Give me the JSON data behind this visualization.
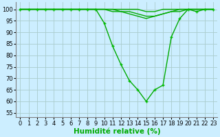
{
  "title": "",
  "xlabel": "Humidité relative (%)",
  "ylabel": "",
  "bg_color": "#cceeff",
  "grid_color": "#aacccc",
  "line_color": "#00aa00",
  "marker_color": "#00bb00",
  "xlim": [
    -0.5,
    23.5
  ],
  "ylim": [
    53,
    103
  ],
  "yticks": [
    55,
    60,
    65,
    70,
    75,
    80,
    85,
    90,
    95,
    100
  ],
  "xticks": [
    0,
    1,
    2,
    3,
    4,
    5,
    6,
    7,
    8,
    9,
    10,
    11,
    12,
    13,
    14,
    15,
    16,
    17,
    18,
    19,
    20,
    21,
    22,
    23
  ],
  "series": [
    [
      100,
      100,
      100,
      100,
      100,
      100,
      100,
      100,
      100,
      100,
      94,
      84,
      76,
      69,
      65,
      60,
      65,
      67,
      88,
      96,
      100,
      99,
      100,
      100
    ],
    [
      100,
      100,
      100,
      100,
      100,
      100,
      100,
      100,
      100,
      100,
      100,
      100,
      100,
      100,
      100,
      99,
      99,
      100,
      100,
      100,
      100,
      100,
      100,
      100
    ],
    [
      100,
      100,
      100,
      100,
      100,
      100,
      100,
      100,
      100,
      100,
      100,
      99,
      99,
      99,
      98,
      97,
      97,
      98,
      99,
      99,
      100,
      100,
      100,
      100
    ],
    [
      100,
      100,
      100,
      100,
      100,
      100,
      100,
      100,
      100,
      100,
      100,
      100,
      99,
      98,
      97,
      96,
      97,
      98,
      99,
      100,
      100,
      100,
      100,
      100
    ]
  ],
  "marker_series": [
    0
  ],
  "marker_size": 3.5,
  "linewidth": 1.0,
  "xlabel_fontsize": 7.5,
  "tick_fontsize": 6.0
}
